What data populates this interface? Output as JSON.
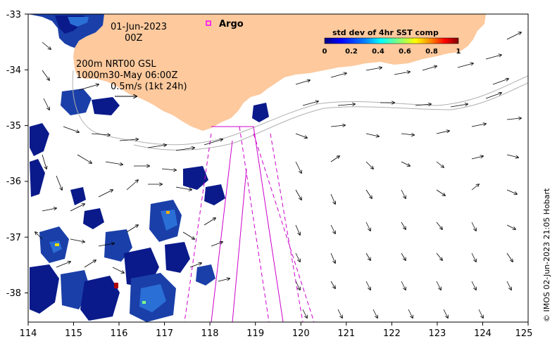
{
  "map": {
    "date": "01-Jun-2023",
    "hour": "00Z",
    "contour_line_1": "200m  NRT00 GSL",
    "contour_line_2": "1000m30-May 06:00Z",
    "scale_text": "0.5m/s (1kt 24h)",
    "argo_label": "Argo",
    "colorbar_title": "std dev of 4hr SST comp",
    "colorbar_ticks": [
      "0",
      "0.2",
      "0.4",
      "0.6",
      "0.8",
      "1"
    ],
    "credit": "© IMOS 02-Jun-2023 21:05 Hobart",
    "x_ticks": [
      "114",
      "115",
      "116",
      "117",
      "118",
      "119",
      "120",
      "121",
      "122",
      "123",
      "124",
      "125"
    ],
    "y_ticks": [
      "-33",
      "-34",
      "-35",
      "-36",
      "-37",
      "-38"
    ],
    "colors": {
      "land": "#fdc99d",
      "argo": "#ff00ff",
      "track": "#cc00cc",
      "contour": "#b0b0b0",
      "sst_low": "#0a1a8a",
      "sst_mid": "#2a6fd6"
    },
    "colorbar_colors": [
      "#00007f",
      "#0000ff",
      "#007fff",
      "#00ffff",
      "#7fff7f",
      "#ffff00",
      "#ff7f00",
      "#ff0000",
      "#7f0000"
    ]
  }
}
